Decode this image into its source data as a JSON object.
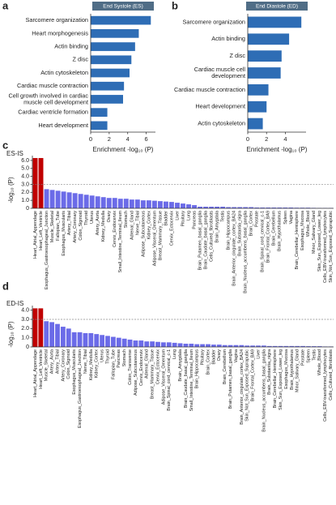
{
  "chart_data": [
    {
      "type": "bar",
      "orientation": "horizontal",
      "panel_label": "a",
      "title": "End Systole (ES)",
      "xlabel": "Enrichment -log₁₀ (P)",
      "color": "#2e6db5",
      "title_color": "#506d86",
      "categories": [
        "Sarcomere organization",
        "Heart morphogenesis",
        "Actin binding",
        "Z disc",
        "Actin cytoskeleton",
        "Cardiac muscle contraction",
        "Cell growth involved in cardiac\nmuscle cell development",
        "Cardiac ventricle formation",
        "Heart development"
      ],
      "values": [
        6.5,
        5.2,
        4.8,
        4.4,
        4.2,
        3.6,
        3.5,
        1.8,
        1.8
      ],
      "xlim": [
        0,
        7
      ],
      "xticks": [
        0,
        2,
        4,
        6
      ]
    },
    {
      "type": "bar",
      "orientation": "horizontal",
      "panel_label": "b",
      "title": "End Diastole (ED)",
      "xlabel": "Enrichment -log₁₀ (P)",
      "color": "#2e6db5",
      "title_color": "#506d86",
      "categories": [
        "Sarcomere organization",
        "Actin binding",
        "Z disc",
        "Cardiac muscle cell\ndevelopment",
        "Cardiac muscle contraction",
        "Heart development",
        "Actin cytoskeleton"
      ],
      "values": [
        5.7,
        4.4,
        3.6,
        3.5,
        2.2,
        2.0,
        1.6
      ],
      "xlim": [
        0,
        6.2
      ],
      "xticks": [
        0,
        2,
        4
      ]
    },
    {
      "type": "bar",
      "orientation": "vertical",
      "panel_label": "c",
      "title": "ES-IS",
      "ylabel": "-log₁₀ (P)",
      "threshold": 3,
      "threshold_color": "#888888",
      "categories": [
        "Heart_Atrial_Appendage",
        "Heart_Left_Ventricle",
        "Esophagus_Gastroesophageal_Junction",
        "Muscle_Skeletal",
        "Fallopian_Tube",
        "Esophagus_Muscularis",
        "Artery_Tibial",
        "Artery_Coronary",
        "Colon_Sigmoid",
        "Thyroid",
        "Uterus",
        "Artery_Aorta",
        "Kidney_Medulla",
        "Ovary",
        "Cervix_Endocervix",
        "Small_Intestine_Terminal_Ileum",
        "Stomach",
        "Adrenal_Gland",
        "Nerve_Tibial",
        "Adipose_Subcutaneous",
        "Kidney_Cortex",
        "Adipose_Visceral_Omentum",
        "Breast_Mammary_Tissue",
        "Bladder",
        "Cervix_Ectocervix",
        "Liver",
        "Pituitary",
        "Lung",
        "Pancreas",
        "Brain_Putamen_basal_ganglia",
        "Brain_Caudate_basal_ganglia",
        "Cells_Cultured_fibroblasts",
        "Brain_Amygdala",
        "Testis",
        "Brain_Hippocampus",
        "Brain_Anterior_cingulate_cortex_BA24",
        "Brain_Substantia_nigra",
        "Brain_Nucleus_accumbens_basal_ganglia",
        "Brain_Cortex",
        "Prostate",
        "Brain_Spinal_cord_cervical_c-1",
        "Brain_Frontal_Cortex_BA9",
        "Brain_Cerebellum",
        "Brain_Hypothalamus",
        "Spleen",
        "Vagina",
        "Brain_Cerebellar_Hemisphere",
        "Esophagus_Mucosa",
        "Whole_Blood",
        "Minor_Salivary_Gland",
        "Skin_Sun_Exposed_Lower_leg",
        "Cells_EBV-transformed_lymphocytes",
        "Skin_Not_Sun_Exposed_Suprapubic"
      ],
      "values": [
        6.3,
        6.3,
        2.4,
        2.3,
        2.2,
        2.1,
        2.0,
        1.9,
        1.8,
        1.7,
        1.6,
        1.5,
        1.4,
        1.3,
        1.3,
        1.2,
        1.2,
        1.1,
        1.1,
        1.0,
        1.0,
        0.95,
        0.9,
        0.85,
        0.8,
        0.7,
        0.6,
        0.5,
        0.4,
        0.2,
        0.2,
        0.2,
        0.2,
        0.2,
        0.15,
        0.15,
        0.15,
        0.15,
        0.15,
        0.1,
        0.1,
        0.1,
        0.1,
        0.1,
        0.1,
        0.1,
        0.08,
        0.08,
        0.08,
        0.06,
        0.05,
        0.05,
        0.05
      ],
      "colors": [
        "#c00000",
        "#c00000",
        "#6b6be8",
        "#6b6be8",
        "#6b6be8",
        "#6b6be8",
        "#6b6be8",
        "#6b6be8",
        "#6b6be8",
        "#6b6be8",
        "#6b6be8",
        "#6b6be8",
        "#6b6be8",
        "#6b6be8",
        "#6b6be8",
        "#6b6be8",
        "#6b6be8",
        "#6b6be8",
        "#6b6be8",
        "#6b6be8",
        "#6b6be8",
        "#6b6be8",
        "#6b6be8",
        "#6b6be8",
        "#6b6be8",
        "#6b6be8",
        "#6b6be8",
        "#6b6be8",
        "#6b6be8",
        "#6b6be8",
        "#6b6be8",
        "#6b6be8",
        "#6b6be8",
        "#6b6be8",
        "#6b6be8",
        "#6b6be8",
        "#6b6be8",
        "#6b6be8",
        "#6b6be8",
        "#6b6be8",
        "#6b6be8",
        "#6b6be8",
        "#6b6be8",
        "#6b6be8",
        "#6b6be8",
        "#6b6be8",
        "#6b6be8",
        "#6b6be8",
        "#6b6be8",
        "#6b6be8",
        "#6b6be8",
        "#6b6be8",
        "#6b6be8"
      ],
      "ylim": [
        0,
        6.6
      ],
      "yticks": [
        0,
        {
          "value": 1,
          "label": "1.0"
        },
        {
          "value": 2,
          "label": "2.0"
        },
        {
          "value": 3,
          "label": "3.0"
        },
        {
          "value": 4,
          "label": "4.0"
        },
        {
          "value": 5,
          "label": "5.0"
        },
        {
          "value": 6,
          "label": "6.0"
        }
      ]
    },
    {
      "type": "bar",
      "orientation": "vertical",
      "panel_label": "d",
      "title": "ED-IS",
      "ylabel": "-log₁₀ (P)",
      "threshold": 3,
      "threshold_color": "#888888",
      "categories": [
        "Heart_Atrial_Appendage",
        "Heart_Left_Ventricle",
        "Muscle_Skeletal",
        "Artery_Aorta",
        "Artery_Tibial",
        "Artery_Coronary",
        "Colon_Sigmoid",
        "Esophagus_Muscularis",
        "Esophagus_Gastroesophageal_Junction",
        "Nerve_Tibial",
        "Kidney_Medulla",
        "Kidney_Cortex",
        "Uterus",
        "Thyroid",
        "Fallopian_Tube",
        "Pancreas",
        "Stomach",
        "Colon_Transverse",
        "Adipose_Subcutaneous",
        "Cervix_Endocervix",
        "Adrenal_Gland",
        "Breast_Mammary_Tissue",
        "Cervix_Ectocervix",
        "Adipose_Visceral_Omentum",
        "Brain_Spinal_cord_cervical_c-1",
        "Lung",
        "Brain_Amygdala",
        "Brain_Caudate_basal_ganglia",
        "Small_Intestine_Terminal_Ileum",
        "Brain_Hippocampus",
        "Pituitary",
        "Brain_Cortex",
        "Bladder",
        "Ovary",
        "Brain_Cerebellum",
        "Brain_Putamen_basal_ganglia",
        "Vagina",
        "Brain_Anterior_cingulate_cortex_BA24",
        "Skin_Not_Sun_Exposed_Suprapubic",
        "Brain_Frontal_Cortex_BA9",
        "Liver",
        "Brain_Nucleus_accumbens_basal_ganglia",
        "Brain_Substantia_nigra",
        "Brain_Cerebellar_Hemisphere",
        "Skin_Sun_Exposed_Lower_leg",
        "Esophagus_Mucosa",
        "Brain_Hypothalamus",
        "Minor_Salivary_Gland",
        "Prostate",
        "Spleen",
        "Testis",
        "Whole_Blood",
        "Cells_EBV-transformed_lymphocytes",
        "Cells_Cultured_fibroblasts"
      ],
      "values": [
        4.2,
        4.2,
        2.8,
        2.7,
        2.5,
        2.2,
        2.0,
        1.6,
        1.6,
        1.5,
        1.5,
        1.4,
        1.3,
        1.2,
        1.1,
        1.0,
        0.9,
        0.8,
        0.7,
        0.7,
        0.6,
        0.6,
        0.55,
        0.5,
        0.5,
        0.45,
        0.4,
        0.35,
        0.35,
        0.3,
        0.3,
        0.3,
        0.25,
        0.25,
        0.2,
        0.2,
        0.2,
        0.2,
        0.15,
        0.15,
        0.15,
        0.15,
        0.1,
        0.1,
        0.1,
        0.1,
        0.1,
        0.1,
        0.1,
        0.08,
        0.08,
        0.08,
        0.05,
        0.05
      ],
      "colors": [
        "#c00000",
        "#c00000",
        "#6b6be8",
        "#6b6be8",
        "#6b6be8",
        "#6b6be8",
        "#6b6be8",
        "#6b6be8",
        "#6b6be8",
        "#6b6be8",
        "#6b6be8",
        "#6b6be8",
        "#6b6be8",
        "#6b6be8",
        "#6b6be8",
        "#6b6be8",
        "#6b6be8",
        "#6b6be8",
        "#6b6be8",
        "#6b6be8",
        "#6b6be8",
        "#6b6be8",
        "#6b6be8",
        "#6b6be8",
        "#6b6be8",
        "#6b6be8",
        "#6b6be8",
        "#6b6be8",
        "#6b6be8",
        "#6b6be8",
        "#6b6be8",
        "#6b6be8",
        "#6b6be8",
        "#6b6be8",
        "#6b6be8",
        "#6b6be8",
        "#6b6be8",
        "#6b6be8",
        "#6b6be8",
        "#6b6be8",
        "#6b6be8",
        "#6b6be8",
        "#6b6be8",
        "#6b6be8",
        "#6b6be8",
        "#6b6be8",
        "#6b6be8",
        "#6b6be8",
        "#6b6be8",
        "#6b6be8",
        "#6b6be8",
        "#6b6be8",
        "#6b6be8",
        "#6b6be8"
      ],
      "ylim": [
        0,
        4.5
      ],
      "yticks": [
        0,
        {
          "value": 1,
          "label": "1.0"
        },
        {
          "value": 2,
          "label": "2.0"
        },
        {
          "value": 3,
          "label": "3.0"
        },
        {
          "value": 4,
          "label": "4.0"
        }
      ]
    }
  ]
}
